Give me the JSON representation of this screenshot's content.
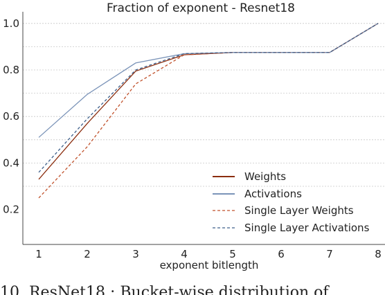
{
  "chart_data": {
    "type": "line",
    "title": "Fraction of exponent - Resnet18",
    "xlabel": "exponent bitlength",
    "ylabel": "",
    "x": [
      1,
      2,
      3,
      4,
      5,
      6,
      7,
      8
    ],
    "xlim": [
      1,
      8
    ],
    "ylim": [
      0.05,
      1.05
    ],
    "xticks": [
      "1",
      "2",
      "3",
      "4",
      "5",
      "6",
      "7",
      "8"
    ],
    "yticks": [
      "0.2",
      "0.4",
      "0.6",
      "0.8",
      "1.0"
    ],
    "ytick_values": [
      0.2,
      0.4,
      0.6,
      0.8,
      1.0
    ],
    "grid": "horizontal dotted",
    "legend_position": "lower-right",
    "series": [
      {
        "name": "Weights",
        "color": "#8b2d0e",
        "style": "solid",
        "values": [
          0.33,
          0.57,
          0.795,
          0.865,
          0.875,
          0.875,
          0.875,
          1.0
        ]
      },
      {
        "name": "Activations",
        "color": "#7a93b8",
        "style": "solid",
        "values": [
          0.51,
          0.695,
          0.83,
          0.87,
          0.875,
          0.875,
          0.875,
          1.0
        ]
      },
      {
        "name": "Single Layer Weights",
        "color": "#c0502a",
        "style": "dashed",
        "values": [
          0.25,
          0.47,
          0.74,
          0.865,
          0.875,
          0.875,
          0.875,
          1.0
        ]
      },
      {
        "name": "Single Layer Activations",
        "color": "#3d5f8a",
        "style": "dashed",
        "values": [
          0.36,
          0.59,
          0.8,
          0.87,
          0.875,
          0.875,
          0.875,
          1.0
        ]
      }
    ]
  },
  "caption": "10.  ResNet18 : Bucket-wise distribution of"
}
